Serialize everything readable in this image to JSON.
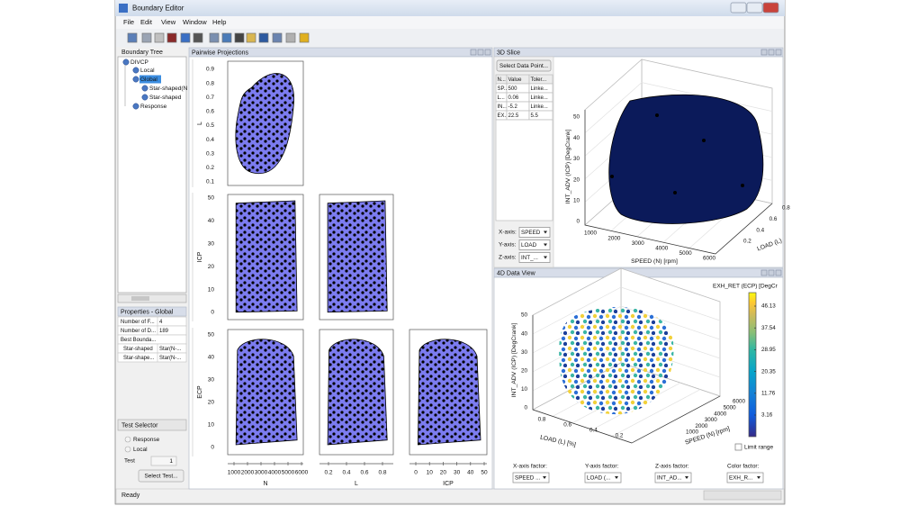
{
  "window": {
    "title": "Boundary Editor",
    "menu": [
      "File",
      "Edit",
      "View",
      "Window",
      "Help"
    ],
    "status": "Ready"
  },
  "tree": {
    "title": "Boundary Tree",
    "nodes": [
      "DIVCP",
      "Local",
      "Global",
      "Star-shaped(N",
      "Star-shaped",
      "Response"
    ]
  },
  "properties": {
    "title": "Properties - Global",
    "rows": [
      [
        "Number of F...",
        4
      ],
      [
        "Number of D...",
        189
      ],
      [
        "Best Bounda..."
      ],
      [
        "Star-shaped",
        "Star(N-..."
      ],
      [
        "Star-shape...",
        "Star(N-..."
      ]
    ]
  },
  "test_selector": {
    "title": "Test Selector",
    "options": [
      "Response",
      "Local"
    ],
    "test_label": "Test",
    "test_value": 1,
    "button": "Select Test..."
  },
  "pairwise": {
    "title": "Pairwise Projections",
    "rows": [
      {
        "label": "L",
        "ticks": [
          0.1,
          0.2,
          0.3,
          0.4,
          0.5,
          0.6,
          0.7,
          0.8,
          0.9
        ]
      },
      {
        "label": "ICP",
        "ticks": [
          0,
          10,
          20,
          30,
          40,
          50
        ]
      },
      {
        "label": "ECP",
        "ticks": [
          0,
          10,
          20,
          30,
          40,
          50
        ]
      }
    ],
    "cols": [
      {
        "label": "N",
        "ticks": [
          1000,
          2000,
          3000,
          4000,
          5000,
          6000
        ]
      },
      {
        "label": "L",
        "ticks": [
          0.2,
          0.4,
          0.6,
          0.8
        ]
      },
      {
        "label": "ICP",
        "ticks": [
          0,
          10,
          20,
          30,
          40,
          50
        ]
      }
    ]
  },
  "slice": {
    "title": "3D Slice",
    "button": "Select Data Point...",
    "table": {
      "headers": [
        "N...",
        "Value",
        "Toler..."
      ],
      "rows": [
        [
          "SP...",
          500,
          "Linke..."
        ],
        [
          "L...",
          0.06,
          "Linke..."
        ],
        [
          "IN...",
          -5.2,
          "Linke..."
        ],
        [
          "EX...",
          22.5,
          5.5
        ]
      ]
    },
    "axes": [
      {
        "label": "X-axis:",
        "value": "SPEED"
      },
      {
        "label": "Y-axis:",
        "value": "LOAD"
      },
      {
        "label": "Z-axis:",
        "value": "INT_..."
      }
    ],
    "plot": {
      "xlabel": "SPEED (N) [rpm]",
      "ylabel": "LOAD (L)",
      "zlabel": "INT_ADV (ICP) [DegCrank]",
      "xticks": [
        1000,
        2000,
        3000,
        4000,
        5000,
        6000
      ],
      "yticks": [
        0.2,
        0.4,
        0.6,
        0.8
      ],
      "zticks": [
        0,
        10,
        20,
        30,
        40,
        50
      ]
    }
  },
  "dataview": {
    "title": "4D Data View",
    "plot": {
      "xlabel": "LOAD (L) [%]",
      "ylabel": "SPEED (N) [rpm]",
      "zlabel": "INT_ADV (ICP) [DegCrank]",
      "xticks": [
        0.8,
        0.6,
        0.4,
        0.2
      ],
      "yticks": [
        1000,
        2000,
        3000,
        4000,
        5000,
        6000
      ],
      "zticks": [
        0,
        10,
        20,
        30,
        40,
        50
      ]
    },
    "colorbar": {
      "title": "EXH_RET (ECP) [DegCr",
      "ticks": [
        46.13,
        37.54,
        28.95,
        20.35,
        11.76,
        3.16
      ],
      "limit_range": "Limit range"
    },
    "factors": [
      {
        "label": "X-axis factor:",
        "value": "SPEED ..."
      },
      {
        "label": "Y-axis factor:",
        "value": "LOAD (..."
      },
      {
        "label": "Z-axis factor:",
        "value": "INT_AD..."
      },
      {
        "label": "Color factor:",
        "value": "EXH_R..."
      }
    ]
  }
}
